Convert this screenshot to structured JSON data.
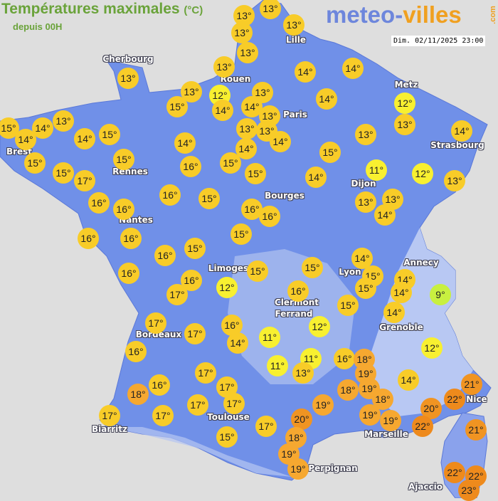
{
  "header": {
    "title": "Températures maximales",
    "unit": "(°C)",
    "subtitle": "depuis 00H",
    "date": "Dim. 02/11/2025 23:00"
  },
  "logo": {
    "part1": "meteo-",
    "part2": "villes",
    "suffix": ".com"
  },
  "colors": {
    "map": "#7090e8",
    "map_light": "#c0d0f4",
    "bg": "#dedede",
    "t9": "#c8f040",
    "t11": "#f8f030",
    "t13": "#f8cc28",
    "t18": "#f6a830",
    "t20": "#f09422",
    "t22": "#ee8a1c"
  },
  "cities": [
    "Cherbourg",
    "Lille",
    "Rouen",
    "Paris",
    "Metz",
    "Strasbourg",
    "Brest",
    "Rennes",
    "Dijon",
    "Bourges",
    "Nantes",
    "Limoges",
    "Annecy",
    "Lyon",
    "Clermont",
    "Ferrand",
    "Grenoble",
    "Bordeaux",
    "Nice",
    "Biarritz",
    "Toulouse",
    "Marseille",
    "Perpignan",
    "Ajaccio"
  ],
  "temperatures": [
    "13°",
    "13°",
    "13°",
    "13°",
    "13°",
    "13°",
    "13°",
    "14°",
    "14°",
    "13°",
    "12°",
    "13°",
    "15°",
    "14°",
    "14°",
    "14°",
    "13°",
    "13°",
    "15°",
    "14°",
    "14°",
    "14°",
    "15°",
    "13°",
    "13°",
    "14°",
    "14°",
    "14°",
    "12°",
    "13°",
    "14°",
    "13°",
    "15°",
    "15°",
    "15°",
    "17°",
    "16°",
    "15°",
    "15°",
    "15°",
    "14°",
    "11°",
    "12°",
    "13°",
    "16°",
    "16°",
    "15°",
    "16°",
    "16°",
    "16°",
    "13°",
    "13°",
    "14°",
    "16°",
    "16°",
    "15°",
    "16°",
    "15°",
    "14°",
    "15°",
    "15°",
    "14°",
    "14°",
    "9°",
    "16°",
    "16°",
    "17°",
    "12°",
    "15°",
    "15°",
    "16°",
    "15°",
    "14°",
    "17°",
    "17°",
    "16°",
    "14°",
    "11°",
    "12°",
    "12°",
    "16°",
    "11°",
    "11°",
    "13°",
    "16°",
    "18°",
    "19°",
    "17°",
    "16°",
    "18°",
    "17°",
    "19°",
    "18°",
    "14°",
    "21°",
    "22°",
    "18°",
    "19°",
    "19°",
    "20°",
    "19°",
    "17°",
    "17°",
    "17°",
    "17°",
    "20°",
    "17°",
    "22°",
    "21°",
    "15°",
    "18°",
    "19°",
    "19°",
    "22°",
    "22°",
    "23°"
  ]
}
